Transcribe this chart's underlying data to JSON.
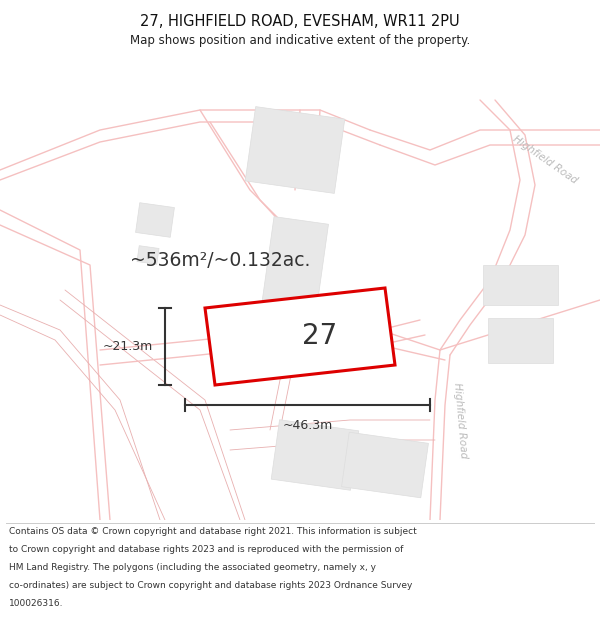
{
  "title_line1": "27, HIGHFIELD ROAD, EVESHAM, WR11 2PU",
  "title_line2": "Map shows position and indicative extent of the property.",
  "area_text": "~536m²/~0.132ac.",
  "width_label": "~46.3m",
  "height_label": "~21.3m",
  "plot_number": "27",
  "bg_color": "#ffffff",
  "road_color": "#f5c0c0",
  "road_lw": 1.0,
  "boundary_color": "#e8b0b0",
  "boundary_lw": 0.6,
  "building_color": "#e8e8e8",
  "building_edge": "#dddddd",
  "plot_edge_color": "#dd0000",
  "plot_edge_lw": 2.2,
  "dim_line_color": "#333333",
  "road_label_color": "#aaaaaa",
  "title_fontsize": 10.5,
  "subtitle_fontsize": 8.5,
  "footer_fontsize": 6.5,
  "footer_lines": [
    "Contains OS data © Crown copyright and database right 2021. This information is subject",
    "to Crown copyright and database rights 2023 and is reproduced with the permission of",
    "HM Land Registry. The polygons (including the associated geometry, namely x, y",
    "co-ordinates) are subject to Crown copyright and database rights 2023 Ordnance Survey",
    "100026316."
  ]
}
